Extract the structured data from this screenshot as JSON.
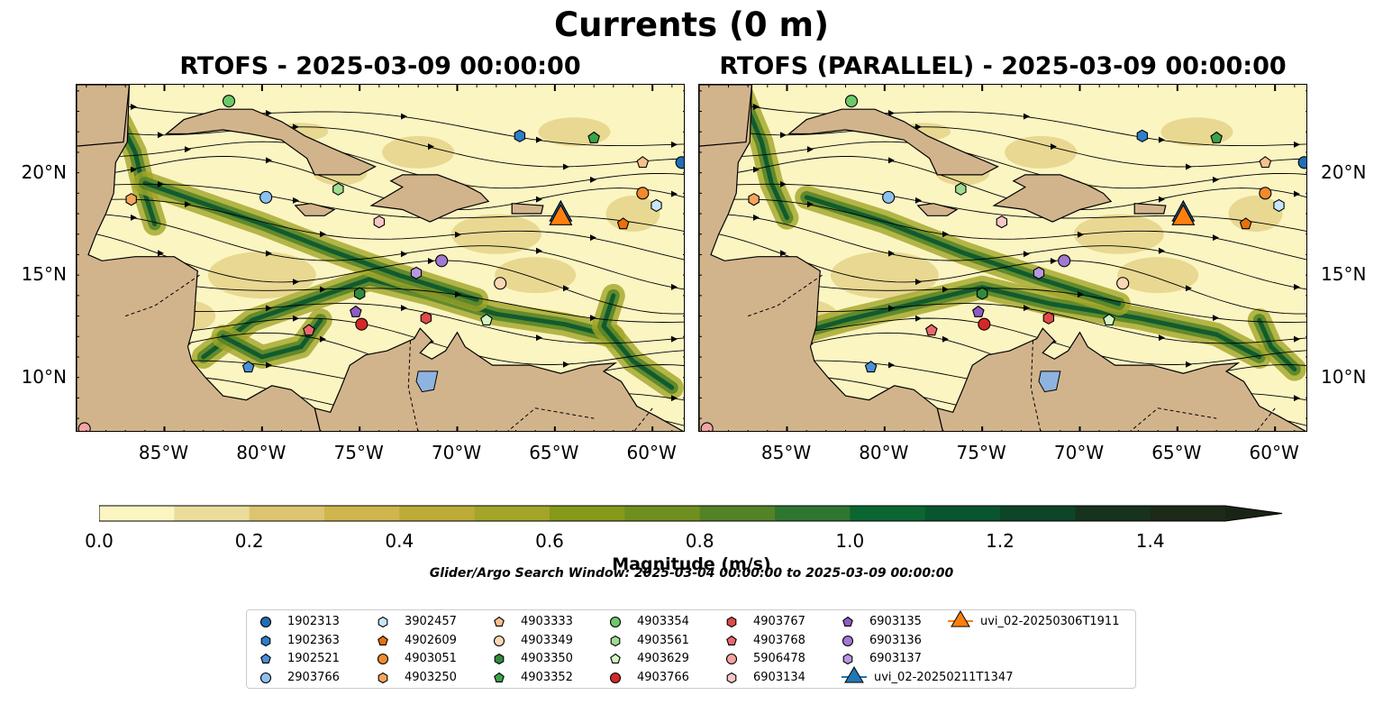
{
  "figure": {
    "suptitle": "Currents (0 m)",
    "left_title": "RTOFS - 2025-03-09 00:00:00",
    "right_title": "RTOFS (PARALLEL) - 2025-03-09 00:00:00",
    "colorbar_label": "Magnitude (m/s)",
    "search_window": "Glider/Argo Search Window: 2025-03-04 00:00:00 to 2025-03-09 00:00:00"
  },
  "axes": {
    "lon_ticks": [
      "85°W",
      "80°W",
      "75°W",
      "70°W",
      "65°W",
      "60°W"
    ],
    "lat_ticks": [
      "20°N",
      "15°N",
      "10°N"
    ]
  },
  "chart_data": {
    "type": "heatmap",
    "variable": "surface current magnitude",
    "units": "m/s",
    "colorbar": {
      "min": 0.0,
      "max": 1.5,
      "step": 0.1,
      "extend": "max",
      "tick_values": [
        0.0,
        0.2,
        0.4,
        0.6,
        0.8,
        1.0,
        1.2,
        1.4
      ],
      "tick_labels": [
        "0.0",
        "0.2",
        "0.4",
        "0.6",
        "0.8",
        "1.0",
        "1.2",
        "1.4"
      ],
      "colors": [
        "#fbf5c2",
        "#eadd9c",
        "#dcc470",
        "#cfb54c",
        "#bcab38",
        "#a3a528",
        "#86991a",
        "#6f8f1f",
        "#548227",
        "#2f7631",
        "#0b6631",
        "#085530",
        "#0e4427",
        "#17331e",
        "#1c2a17"
      ],
      "extend_color": "#1a2416"
    },
    "extent": {
      "lon_min": -89.5,
      "lon_max": -58.3,
      "lat_min": 7.3,
      "lat_max": 24.3
    },
    "land_color": "#d2b48c",
    "lake_color": "#8fb3e0"
  },
  "markers": [
    {
      "id": "1902313",
      "shape": "circle",
      "color": "#1f6fb5",
      "lon": -58.5,
      "lat": 20.5
    },
    {
      "id": "1902363",
      "shape": "hexagon",
      "color": "#2e7ec9",
      "lon": -66.8,
      "lat": 21.8
    },
    {
      "id": "1902521",
      "shape": "pentagon",
      "color": "#4a90d6",
      "lon": -80.7,
      "lat": 10.5
    },
    {
      "id": "2903766",
      "shape": "circle",
      "color": "#8dc2ef",
      "lon": -79.8,
      "lat": 18.8
    },
    {
      "id": "3902457",
      "shape": "hexagon",
      "color": "#c8e6fb",
      "lon": -59.8,
      "lat": 18.4
    },
    {
      "id": "4902609",
      "shape": "pentagon",
      "color": "#e8710a",
      "lon": -61.5,
      "lat": 17.5
    },
    {
      "id": "4903051",
      "shape": "circle",
      "color": "#f08a2c",
      "lon": -60.5,
      "lat": 19.0
    },
    {
      "id": "4903250",
      "shape": "hexagon",
      "color": "#f5a55c",
      "lon": -86.7,
      "lat": 18.7
    },
    {
      "id": "4903333",
      "shape": "pentagon",
      "color": "#f8c08c",
      "lon": -60.5,
      "lat": 20.5
    },
    {
      "id": "4903349",
      "shape": "circle",
      "color": "#fbd8b5",
      "lon": -67.8,
      "lat": 14.6
    },
    {
      "id": "4903350",
      "shape": "hexagon",
      "color": "#2e8b3e",
      "lon": -75.0,
      "lat": 14.1
    },
    {
      "id": "4903352",
      "shape": "pentagon",
      "color": "#3aa34a",
      "lon": -63.0,
      "lat": 21.7
    },
    {
      "id": "4903354",
      "shape": "circle",
      "color": "#6cc96a",
      "lon": -81.7,
      "lat": 23.5
    },
    {
      "id": "4903561",
      "shape": "hexagon",
      "color": "#9fdc90",
      "lon": -76.1,
      "lat": 19.2
    },
    {
      "id": "4903629",
      "shape": "pentagon",
      "color": "#d2f5c2",
      "lon": -68.5,
      "lat": 12.8
    },
    {
      "id": "4903766",
      "shape": "circle",
      "color": "#d62728",
      "lon": -74.9,
      "lat": 12.6
    },
    {
      "id": "4903767",
      "shape": "hexagon",
      "color": "#e04a4a",
      "lon": -71.6,
      "lat": 12.9
    },
    {
      "id": "4903768",
      "shape": "pentagon",
      "color": "#e8686c",
      "lon": -77.6,
      "lat": 12.3
    },
    {
      "id": "5906478",
      "shape": "circle",
      "color": "#f4a3a3",
      "lon": -89.1,
      "lat": 7.5
    },
    {
      "id": "6903134",
      "shape": "hexagon",
      "color": "#f8c6c6",
      "lon": -74.0,
      "lat": 17.6
    },
    {
      "id": "6903135",
      "shape": "pentagon",
      "color": "#8e5cc2",
      "lon": -75.2,
      "lat": 13.2
    },
    {
      "id": "6903136",
      "shape": "circle",
      "color": "#a07ad0",
      "lon": -70.8,
      "lat": 15.7
    },
    {
      "id": "6903137",
      "shape": "hexagon",
      "color": "#b797de",
      "lon": -72.1,
      "lat": 15.1
    }
  ],
  "gliders": [
    {
      "id": "uvi_02-20250211T1347",
      "shape": "triangle",
      "color": "#1f77b4",
      "lon": -64.7,
      "lat": 18.0
    },
    {
      "id": "uvi_02-20250306T1911",
      "shape": "triangle",
      "color": "#ff7f0e",
      "lon": -64.7,
      "lat": 17.9
    }
  ]
}
